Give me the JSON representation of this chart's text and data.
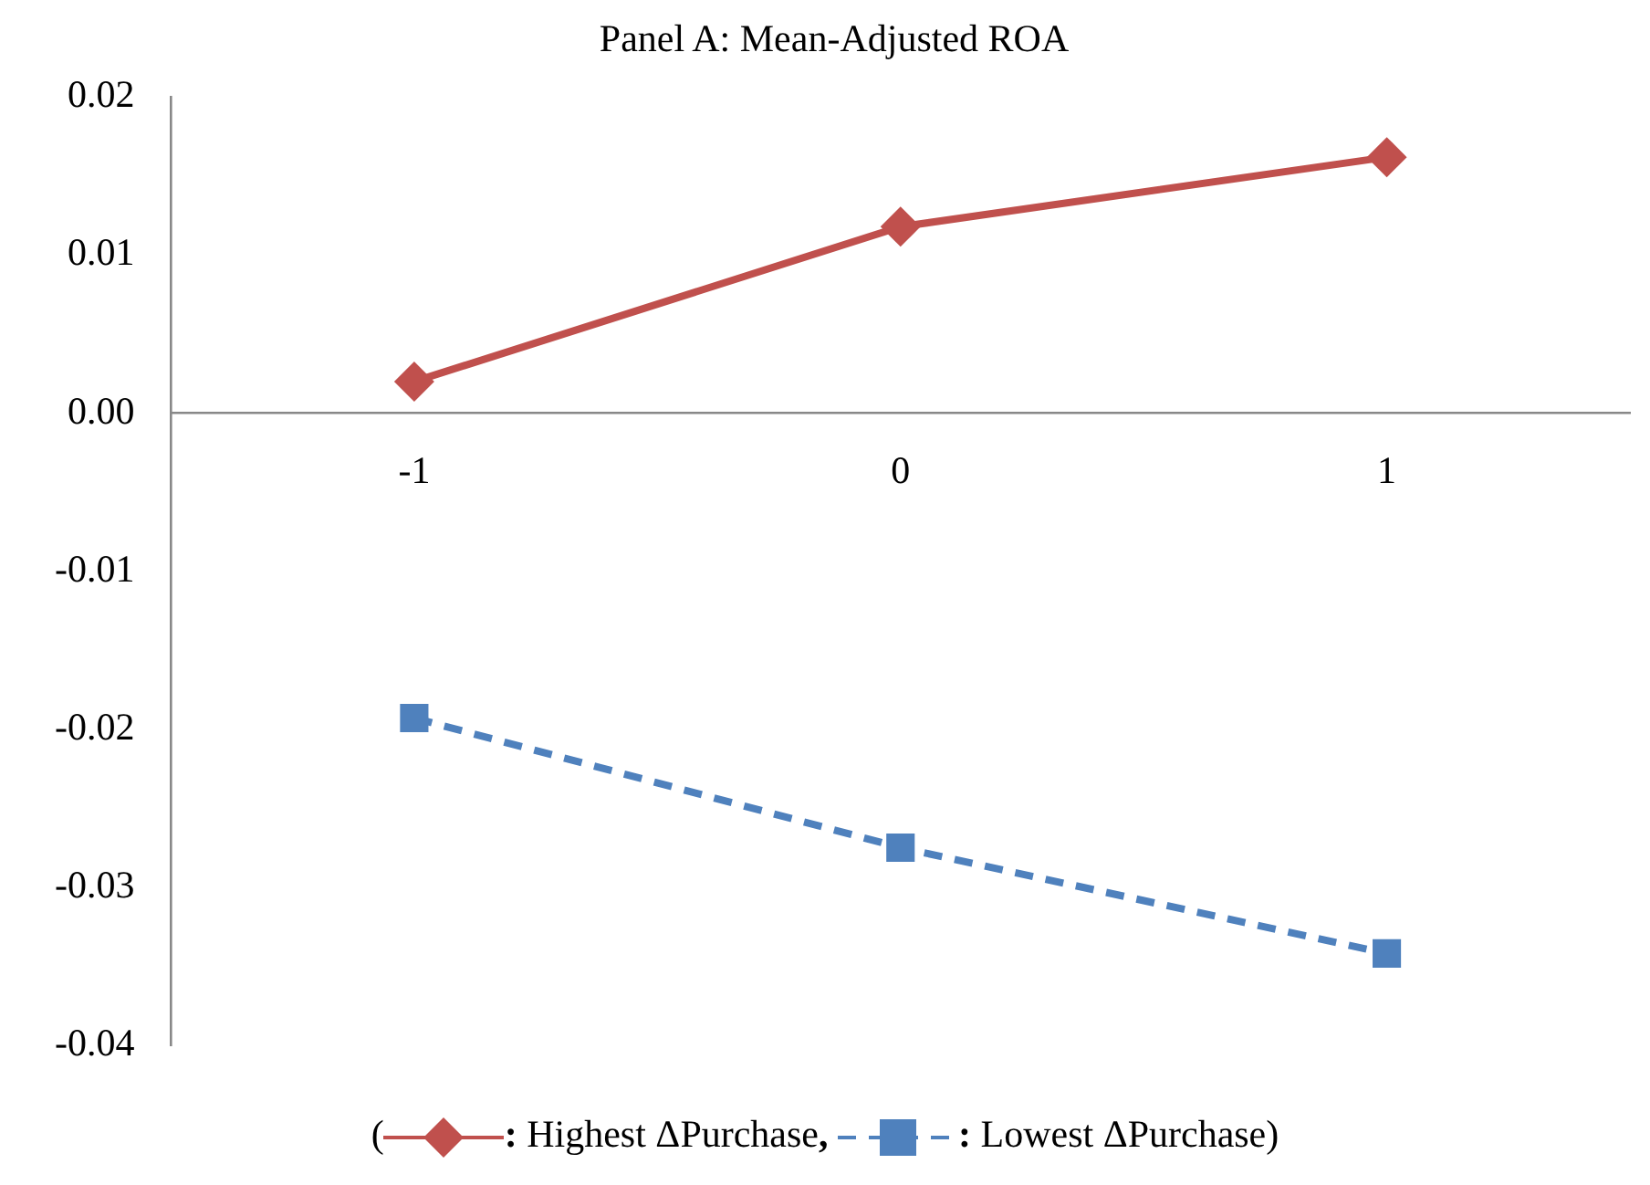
{
  "chart_data": {
    "type": "line",
    "title": "Panel A: Mean-Adjusted ROA",
    "categories": [
      "-1",
      "0",
      "1"
    ],
    "series": [
      {
        "name": "Highest ΔPurchase",
        "color": "#c0504d",
        "values": [
          0.002,
          0.0118,
          0.0162
        ],
        "marker": "diamond",
        "line_style": "solid"
      },
      {
        "name": "Lowest ΔPurchase",
        "color": "#4f81bd",
        "values": [
          -0.0193,
          -0.0275,
          -0.0342
        ],
        "marker": "square",
        "line_style": "dashed"
      }
    ],
    "ylim": [
      -0.04,
      0.02
    ],
    "yticks": [
      0.02,
      0.01,
      {
        "value": 0,
        "label": "0.00"
      },
      -0.01,
      -0.02,
      -0.03,
      -0.04
    ],
    "grid": false,
    "legend": "bottom",
    "annotations": [
      "(",
      ":",
      ",",
      ":",
      ")"
    ]
  }
}
